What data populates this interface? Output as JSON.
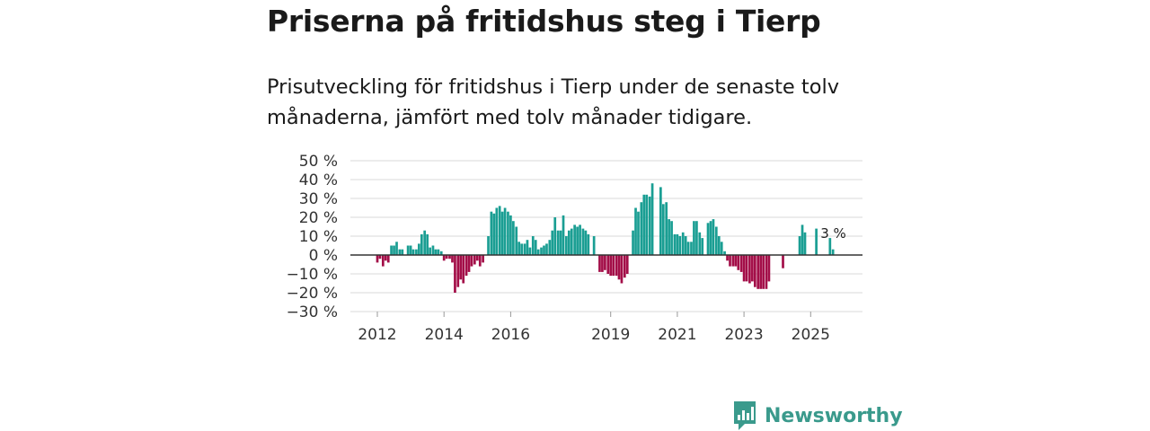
{
  "header": {
    "title": "Priserna på fritidshus steg i Tierp",
    "subtitle": "Prisutveckling för fritidshus i Tierp under de senaste tolv månaderna, jämfört med tolv månader tidigare."
  },
  "colors": {
    "positive": "#1a9e93",
    "negative": "#a30e48",
    "grid": "#d9d9d9",
    "zero": "#333333"
  },
  "brand": {
    "name": "Newsworthy",
    "icon": "newsworthy-bar-chart-icon"
  },
  "chart_data": {
    "type": "bar",
    "title": "Priserna på fritidshus steg i Tierp",
    "ylabel": "",
    "xlabel": "",
    "ylim": [
      -30,
      50
    ],
    "yticks": [
      50,
      40,
      30,
      20,
      10,
      0,
      -10,
      -20,
      -30
    ],
    "ytick_labels": [
      "50 %",
      "40 %",
      "30 %",
      "20 %",
      "10 %",
      "0 %",
      "−10 %",
      "−20 %",
      "−30 %"
    ],
    "x_range": [
      2011.5,
      2026.5
    ],
    "xticks": [
      2012,
      2014,
      2016,
      2019,
      2021,
      2023,
      2025
    ],
    "xtick_labels": [
      "2012",
      "2014",
      "2016",
      "2019",
      "2021",
      "2023",
      "2025"
    ],
    "last_label": "3 %",
    "series": [
      {
        "name": "Prisutveckling",
        "points": [
          {
            "t": 2012.0,
            "v": -4
          },
          {
            "t": 2012.08,
            "v": -2
          },
          {
            "t": 2012.17,
            "v": -6
          },
          {
            "t": 2012.25,
            "v": -3
          },
          {
            "t": 2012.33,
            "v": -4
          },
          {
            "t": 2012.42,
            "v": 5
          },
          {
            "t": 2012.5,
            "v": 5
          },
          {
            "t": 2012.58,
            "v": 7
          },
          {
            "t": 2012.67,
            "v": 3
          },
          {
            "t": 2012.75,
            "v": 3
          },
          {
            "t": 2012.92,
            "v": 5
          },
          {
            "t": 2013.0,
            "v": 5
          },
          {
            "t": 2013.08,
            "v": 3
          },
          {
            "t": 2013.17,
            "v": 3
          },
          {
            "t": 2013.25,
            "v": 6
          },
          {
            "t": 2013.33,
            "v": 11
          },
          {
            "t": 2013.42,
            "v": 13
          },
          {
            "t": 2013.5,
            "v": 11
          },
          {
            "t": 2013.58,
            "v": 4
          },
          {
            "t": 2013.67,
            "v": 5
          },
          {
            "t": 2013.75,
            "v": 3
          },
          {
            "t": 2013.83,
            "v": 3
          },
          {
            "t": 2013.92,
            "v": 2
          },
          {
            "t": 2014.0,
            "v": -3
          },
          {
            "t": 2014.08,
            "v": -2
          },
          {
            "t": 2014.17,
            "v": -2
          },
          {
            "t": 2014.25,
            "v": -4
          },
          {
            "t": 2014.33,
            "v": -20
          },
          {
            "t": 2014.42,
            "v": -17
          },
          {
            "t": 2014.5,
            "v": -13
          },
          {
            "t": 2014.58,
            "v": -15
          },
          {
            "t": 2014.67,
            "v": -11
          },
          {
            "t": 2014.75,
            "v": -9
          },
          {
            "t": 2014.83,
            "v": -6
          },
          {
            "t": 2014.92,
            "v": -5
          },
          {
            "t": 2015.0,
            "v": -3
          },
          {
            "t": 2015.08,
            "v": -6
          },
          {
            "t": 2015.17,
            "v": -4
          },
          {
            "t": 2015.33,
            "v": 10
          },
          {
            "t": 2015.42,
            "v": 23
          },
          {
            "t": 2015.5,
            "v": 22
          },
          {
            "t": 2015.58,
            "v": 25
          },
          {
            "t": 2015.67,
            "v": 26
          },
          {
            "t": 2015.75,
            "v": 23
          },
          {
            "t": 2015.83,
            "v": 25
          },
          {
            "t": 2015.92,
            "v": 23
          },
          {
            "t": 2016.0,
            "v": 21
          },
          {
            "t": 2016.08,
            "v": 18
          },
          {
            "t": 2016.17,
            "v": 15
          },
          {
            "t": 2016.25,
            "v": 7
          },
          {
            "t": 2016.33,
            "v": 6
          },
          {
            "t": 2016.42,
            "v": 6
          },
          {
            "t": 2016.5,
            "v": 8
          },
          {
            "t": 2016.58,
            "v": 4
          },
          {
            "t": 2016.67,
            "v": 10
          },
          {
            "t": 2016.75,
            "v": 8
          },
          {
            "t": 2016.83,
            "v": 3
          },
          {
            "t": 2016.92,
            "v": 4
          },
          {
            "t": 2017.0,
            "v": 5
          },
          {
            "t": 2017.08,
            "v": 6
          },
          {
            "t": 2017.17,
            "v": 8
          },
          {
            "t": 2017.25,
            "v": 13
          },
          {
            "t": 2017.33,
            "v": 20
          },
          {
            "t": 2017.42,
            "v": 13
          },
          {
            "t": 2017.5,
            "v": 13
          },
          {
            "t": 2017.58,
            "v": 21
          },
          {
            "t": 2017.67,
            "v": 10
          },
          {
            "t": 2017.75,
            "v": 13
          },
          {
            "t": 2017.83,
            "v": 14
          },
          {
            "t": 2017.92,
            "v": 16
          },
          {
            "t": 2018.0,
            "v": 15
          },
          {
            "t": 2018.08,
            "v": 16
          },
          {
            "t": 2018.17,
            "v": 14
          },
          {
            "t": 2018.25,
            "v": 13
          },
          {
            "t": 2018.33,
            "v": 11
          },
          {
            "t": 2018.5,
            "v": 10
          },
          {
            "t": 2018.67,
            "v": -9
          },
          {
            "t": 2018.75,
            "v": -9
          },
          {
            "t": 2018.83,
            "v": -8
          },
          {
            "t": 2018.92,
            "v": -10
          },
          {
            "t": 2019.0,
            "v": -11
          },
          {
            "t": 2019.08,
            "v": -11
          },
          {
            "t": 2019.17,
            "v": -11
          },
          {
            "t": 2019.25,
            "v": -13
          },
          {
            "t": 2019.33,
            "v": -15
          },
          {
            "t": 2019.42,
            "v": -12
          },
          {
            "t": 2019.5,
            "v": -10
          },
          {
            "t": 2019.67,
            "v": 13
          },
          {
            "t": 2019.75,
            "v": 25
          },
          {
            "t": 2019.83,
            "v": 23
          },
          {
            "t": 2019.92,
            "v": 28
          },
          {
            "t": 2020.0,
            "v": 32
          },
          {
            "t": 2020.08,
            "v": 32
          },
          {
            "t": 2020.17,
            "v": 31
          },
          {
            "t": 2020.25,
            "v": 38
          },
          {
            "t": 2020.5,
            "v": 36
          },
          {
            "t": 2020.58,
            "v": 27
          },
          {
            "t": 2020.67,
            "v": 28
          },
          {
            "t": 2020.75,
            "v": 19
          },
          {
            "t": 2020.83,
            "v": 18
          },
          {
            "t": 2020.92,
            "v": 11
          },
          {
            "t": 2021.0,
            "v": 11
          },
          {
            "t": 2021.08,
            "v": 10
          },
          {
            "t": 2021.17,
            "v": 12
          },
          {
            "t": 2021.25,
            "v": 10
          },
          {
            "t": 2021.33,
            "v": 7
          },
          {
            "t": 2021.42,
            "v": 7
          },
          {
            "t": 2021.5,
            "v": 18
          },
          {
            "t": 2021.58,
            "v": 18
          },
          {
            "t": 2021.67,
            "v": 12
          },
          {
            "t": 2021.75,
            "v": 9
          },
          {
            "t": 2021.92,
            "v": 17
          },
          {
            "t": 2022.0,
            "v": 18
          },
          {
            "t": 2022.08,
            "v": 19
          },
          {
            "t": 2022.17,
            "v": 15
          },
          {
            "t": 2022.25,
            "v": 10
          },
          {
            "t": 2022.33,
            "v": 7
          },
          {
            "t": 2022.42,
            "v": 2
          },
          {
            "t": 2022.5,
            "v": -3
          },
          {
            "t": 2022.58,
            "v": -6
          },
          {
            "t": 2022.67,
            "v": -6
          },
          {
            "t": 2022.75,
            "v": -6
          },
          {
            "t": 2022.83,
            "v": -8
          },
          {
            "t": 2022.92,
            "v": -9
          },
          {
            "t": 2023.0,
            "v": -14
          },
          {
            "t": 2023.08,
            "v": -14
          },
          {
            "t": 2023.17,
            "v": -15
          },
          {
            "t": 2023.25,
            "v": -14
          },
          {
            "t": 2023.33,
            "v": -17
          },
          {
            "t": 2023.42,
            "v": -18
          },
          {
            "t": 2023.5,
            "v": -18
          },
          {
            "t": 2023.58,
            "v": -18
          },
          {
            "t": 2023.67,
            "v": -18
          },
          {
            "t": 2023.75,
            "v": -14
          },
          {
            "t": 2024.17,
            "v": -7
          },
          {
            "t": 2024.67,
            "v": 10
          },
          {
            "t": 2024.75,
            "v": 16
          },
          {
            "t": 2024.83,
            "v": 12
          },
          {
            "t": 2025.17,
            "v": 14
          },
          {
            "t": 2025.58,
            "v": 9
          },
          {
            "t": 2025.67,
            "v": 3
          }
        ]
      }
    ]
  }
}
